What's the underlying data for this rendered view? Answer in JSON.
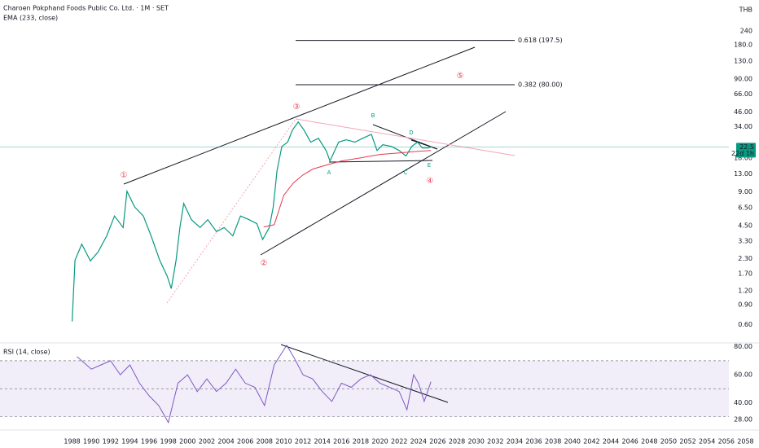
{
  "chart_data": [
    {
      "type": "line",
      "title": "Charoen Pokphand Foods Public Co. Ltd. · 1M · SET",
      "subtitle": "EMA (233, close)",
      "currency": "THB",
      "log_scale": true,
      "xlim": [
        1980.5,
        2059.4
      ],
      "ylim": [
        0.42,
        450
      ],
      "yticks": [
        240,
        {
          "value": 180,
          "label": "180.0"
        },
        {
          "value": 130,
          "label": "130.0"
        },
        {
          "value": 90,
          "label": "90.00"
        },
        {
          "value": 66,
          "label": "66.00"
        },
        {
          "value": 46,
          "label": "46.00"
        },
        {
          "value": 34,
          "label": "34.00"
        },
        {
          "value": 18,
          "label": "18.00"
        },
        {
          "value": 13,
          "label": "13.00"
        },
        {
          "value": 9,
          "label": "9.00"
        },
        {
          "value": 6.5,
          "label": "6.50"
        },
        {
          "value": 4.5,
          "label": "4.50"
        },
        {
          "value": 3.3,
          "label": "3.30"
        },
        {
          "value": 2.3,
          "label": "2.30"
        },
        {
          "value": 1.7,
          "label": "1.70"
        },
        {
          "value": 1.2,
          "label": "1.20"
        },
        {
          "value": 0.9,
          "label": "0.90"
        },
        {
          "value": 0.6,
          "label": "0.60"
        }
      ],
      "series": [
        {
          "color": "#089981",
          "x": [
            1988.0,
            1988.3,
            1989.0,
            1989.9,
            1990.7,
            1991.6,
            1992.4,
            1993.3,
            1993.7,
            1994.5,
            1995.4,
            1996.2,
            1997.1,
            1997.9,
            1998.3,
            1998.8,
            1999.2,
            1999.6,
            2000.4,
            2001.3,
            2002.1,
            2003.0,
            2003.8,
            2004.7,
            2005.5,
            2006.4,
            2007.2,
            2007.8,
            2008.5,
            2008.9,
            2009.3,
            2009.8,
            2010.4,
            2010.9,
            2011.5,
            2012.1,
            2012.8,
            2013.6,
            2014.4,
            2014.8,
            2015.7,
            2016.5,
            2017.4,
            2018.2,
            2019.1,
            2019.7,
            2020.3,
            2021.2,
            2022.0,
            2022.7,
            2023.3,
            2023.9,
            2024.4,
            2025.0,
            2025.3
          ],
          "values": [
            0.64,
            2.23,
            3.1,
            2.2,
            2.64,
            3.67,
            5.5,
            4.35,
            9.1,
            6.6,
            5.5,
            3.67,
            2.23,
            1.6,
            1.25,
            2.23,
            4.35,
            7.1,
            5.1,
            4.35,
            5.1,
            4.0,
            4.35,
            3.67,
            5.5,
            5.1,
            4.7,
            3.4,
            4.35,
            6.6,
            13.9,
            22.7,
            24.8,
            31.7,
            37.4,
            31.7,
            24.8,
            26.8,
            20.9,
            16.9,
            24.8,
            26,
            24.8,
            26.8,
            29.1,
            20.9,
            23.5,
            22.7,
            20.9,
            18.7,
            22.7,
            24.8,
            22,
            22,
            22.5
          ]
        },
        {
          "color": "#e53950",
          "x": [
            2007.9,
            2009.0,
            2010.0,
            2011.0,
            2012.0,
            2013.0,
            2014.5,
            2016.0,
            2018.0,
            2020.0,
            2022.0,
            2024.0,
            2025.3
          ],
          "values": [
            4.4,
            4.6,
            8.4,
            10.8,
            12.7,
            14.3,
            15.6,
            16.9,
            18,
            19.3,
            19.9,
            20.6,
            20.9
          ]
        }
      ],
      "last_price": 22.5,
      "countdown": "22d 1h",
      "fib_levels": [
        {
          "value": 197.5,
          "label": "0.618 (197.5)"
        },
        {
          "value": 80,
          "label": "0.382 (80.00)"
        }
      ],
      "annotations": [
        "①",
        "②",
        "③",
        "④",
        "⑤",
        "A",
        "B",
        "C",
        "D",
        "E"
      ]
    },
    {
      "type": "line",
      "title": "RSI (14, close)",
      "color": "#7e57c2",
      "xlim": [
        1980.5,
        2059.4
      ],
      "ylim": [
        21.1,
        82.7
      ],
      "yticks": [
        {
          "value": 80,
          "label": "80.00"
        },
        {
          "value": 60,
          "label": "60.00"
        },
        {
          "value": 40,
          "label": "40.00"
        },
        {
          "value": 28,
          "label": "28.00"
        }
      ],
      "bands": [
        70,
        50,
        30
      ],
      "xticks": [
        1988,
        1990,
        1992,
        1994,
        1996,
        1998,
        2000,
        2002,
        2004,
        2006,
        2008,
        2010,
        2012,
        2014,
        2016,
        2018,
        2020,
        2022,
        2024,
        2026,
        2028,
        2030,
        2032,
        2034,
        2036,
        2038,
        2040,
        2042,
        2044,
        2046,
        2048,
        2050,
        2052,
        2054,
        2056,
        2058
      ],
      "x": [
        1988.5,
        1990,
        1991,
        1992,
        1993,
        1994,
        1995,
        1996,
        1997,
        1998,
        1999,
        2000,
        2001,
        2002,
        2003,
        2004,
        2005,
        2006,
        2007,
        2008,
        2009,
        2010.3,
        2011,
        2012,
        2013,
        2014,
        2015,
        2016,
        2017,
        2018,
        2019,
        2020,
        2021,
        2022,
        2022.8,
        2023.5,
        2024,
        2024.6,
        2025.3
      ],
      "values": [
        73,
        64,
        67,
        70,
        60,
        67,
        54,
        45,
        38,
        26,
        54,
        60,
        48,
        57,
        48,
        54,
        64,
        54,
        51,
        38,
        67,
        81,
        73,
        60,
        57,
        48,
        41,
        54,
        51,
        57,
        60,
        54,
        51,
        48,
        35,
        60,
        54,
        41,
        55
      ]
    }
  ]
}
